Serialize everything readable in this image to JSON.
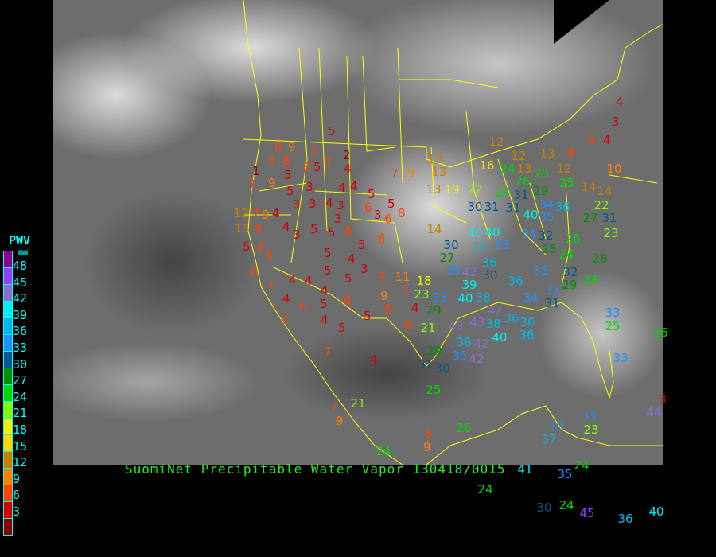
{
  "title": "SuomiNet Precipitable Water Vapor 130418/0015",
  "legend": {
    "title": "PWV",
    "unit": "mm",
    "labels": [
      "48",
      "45",
      "42",
      "39",
      "36",
      "33",
      "30",
      "27",
      "24",
      "21",
      "18",
      "15",
      "12",
      "9",
      "6",
      "3"
    ],
    "colors": [
      "#900090",
      "#9040ff",
      "#8870d0",
      "#00f0f0",
      "#00b8e8",
      "#1e90ff",
      "#005a90",
      "#009000",
      "#00d800",
      "#80ff00",
      "#f0f000",
      "#ffd700",
      "#c88000",
      "#ff8000",
      "#ff4400",
      "#d40000",
      "#8b0000"
    ]
  },
  "stations": [
    5,
    2,
    6,
    4,
    7,
    8,
    9,
    8,
    8,
    8,
    1,
    7,
    9,
    5,
    5,
    3,
    5,
    4,
    4,
    5,
    5,
    6,
    3,
    6,
    8,
    3,
    4,
    3,
    3,
    4,
    7,
    12,
    9,
    13,
    8,
    4,
    3,
    5,
    3,
    5,
    6,
    6,
    5,
    5,
    4,
    3,
    5,
    5,
    7,
    5,
    8,
    6,
    6,
    7,
    4,
    4,
    4,
    4,
    6,
    5,
    6,
    9,
    7,
    11,
    18,
    23,
    6,
    5,
    4,
    6,
    5,
    4,
    7,
    7,
    4,
    21,
    29,
    29,
    30,
    31,
    35,
    38,
    25,
    21,
    7,
    9,
    6,
    9,
    26,
    24,
    7,
    9,
    13,
    13,
    13,
    19,
    22,
    24,
    31,
    30,
    31,
    31,
    14,
    30,
    27,
    35,
    42,
    39,
    40,
    40,
    37,
    36,
    30,
    33,
    36,
    34,
    32,
    28,
    35,
    33,
    32,
    29,
    24,
    24,
    26,
    40,
    35,
    36,
    25,
    14,
    14,
    22,
    27,
    31,
    23,
    28,
    33,
    40,
    38,
    43,
    43,
    42,
    38,
    36,
    40,
    42,
    42,
    36,
    36,
    34,
    31,
    12,
    12,
    13,
    8,
    12,
    6,
    4,
    10,
    4,
    3,
    16,
    24,
    13,
    25,
    26,
    29,
    34,
    33,
    33,
    33,
    33,
    37,
    41,
    35,
    24,
    24,
    30,
    24,
    45,
    36,
    40,
    44,
    3,
    23,
    26,
    25
  ]
}
